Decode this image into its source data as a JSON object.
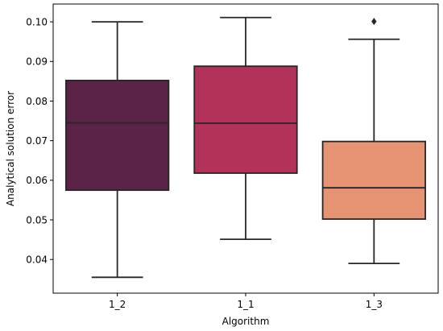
{
  "chart_data": {
    "type": "box",
    "title": "",
    "xlabel": "Algorithm",
    "ylabel": "Analytical solution error",
    "ylim": [
      0.0315,
      0.1045
    ],
    "yticks": [
      0.04,
      0.05,
      0.06,
      0.07,
      0.08,
      0.09,
      0.1
    ],
    "ytick_labels": [
      "0.04",
      "0.05",
      "0.06",
      "0.07",
      "0.08",
      "0.09",
      "0.10"
    ],
    "grid": false,
    "categories": [
      "1_2",
      "1_1",
      "1_3"
    ],
    "colors": [
      "#5c2349",
      "#b3325a",
      "#e59373"
    ],
    "edge_color": "#262626",
    "boxes": [
      {
        "category": "1_2",
        "whisker_low": 0.0355,
        "q1": 0.0575,
        "median": 0.0745,
        "q3": 0.0852,
        "whisker_high": 0.1,
        "outliers": []
      },
      {
        "category": "1_1",
        "whisker_low": 0.0451,
        "q1": 0.0618,
        "median": 0.0744,
        "q3": 0.0888,
        "whisker_high": 0.1011,
        "outliers": []
      },
      {
        "category": "1_3",
        "whisker_low": 0.039,
        "q1": 0.0502,
        "median": 0.0581,
        "q3": 0.0698,
        "whisker_high": 0.0956,
        "outliers": [
          0.1001
        ]
      }
    ]
  }
}
